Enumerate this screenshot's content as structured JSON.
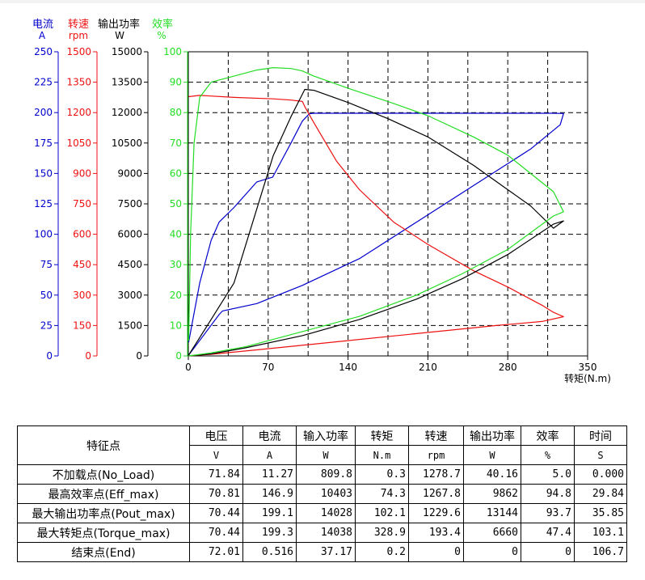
{
  "chart_data": {
    "type": "line",
    "xlabel": "转矩(N.m)",
    "x_ticks": [
      0,
      70,
      140,
      210,
      280,
      350
    ],
    "xlim": [
      0,
      350
    ],
    "grid": true,
    "axes": [
      {
        "name": "电流",
        "unit": "A",
        "color": "#0000cc",
        "ticks": [
          0,
          25,
          50,
          75,
          100,
          125,
          150,
          175,
          200,
          225,
          250
        ],
        "ylim": [
          0,
          250
        ]
      },
      {
        "name": "转速",
        "unit": "rpm",
        "color": "#ee1111",
        "ticks": [
          0,
          150,
          300,
          450,
          600,
          750,
          900,
          1050,
          1200,
          1350,
          1500
        ],
        "ylim": [
          0,
          1500
        ]
      },
      {
        "name": "输出功率",
        "unit": "W",
        "color": "#000000",
        "ticks": [
          0,
          1500,
          3000,
          4500,
          6000,
          7500,
          9000,
          10500,
          12000,
          13500,
          15000
        ],
        "ylim": [
          0,
          15000
        ]
      },
      {
        "name": "效率",
        "unit": "%",
        "color": "#22dd22",
        "ticks": [
          0,
          10,
          20,
          30,
          40,
          50,
          60,
          70,
          80,
          90,
          100
        ],
        "ylim": [
          0,
          100
        ]
      }
    ],
    "series": [
      {
        "axis": 0,
        "color": "#0000cc",
        "points": [
          [
            0.3,
            11.3
          ],
          [
            10,
            60
          ],
          [
            20,
            95
          ],
          [
            27,
            110
          ],
          [
            40,
            122
          ],
          [
            60,
            143
          ],
          [
            74,
            147
          ],
          [
            90,
            175
          ],
          [
            100,
            193
          ],
          [
            106,
            199
          ],
          [
            110,
            199.5
          ],
          [
            200,
            199.5
          ],
          [
            320,
            199.5
          ],
          [
            328.9,
            199.3
          ],
          [
            326,
            190
          ],
          [
            300,
            170
          ],
          [
            250,
            140
          ],
          [
            200,
            110
          ],
          [
            150,
            80
          ],
          [
            100,
            58
          ],
          [
            60,
            43
          ],
          [
            30,
            37
          ],
          [
            27,
            34
          ],
          [
            0.2,
            0.5
          ]
        ]
      },
      {
        "axis": 1,
        "color": "#ee1111",
        "points": [
          [
            0.3,
            1278.7
          ],
          [
            10,
            1285
          ],
          [
            40,
            1275
          ],
          [
            74.3,
            1267.8
          ],
          [
            90,
            1262
          ],
          [
            100,
            1255
          ],
          [
            102.1,
            1229.6
          ],
          [
            110,
            1150
          ],
          [
            130,
            960
          ],
          [
            150,
            820
          ],
          [
            180,
            660
          ],
          [
            210,
            550
          ],
          [
            250,
            420
          ],
          [
            280,
            340
          ],
          [
            310,
            250
          ],
          [
            320,
            215
          ],
          [
            328.9,
            193.4
          ],
          [
            310,
            170
          ],
          [
            270,
            150
          ],
          [
            200,
            110
          ],
          [
            130,
            70
          ],
          [
            60,
            30
          ],
          [
            20,
            8
          ],
          [
            0.2,
            0
          ]
        ]
      },
      {
        "axis": 2,
        "color": "#000000",
        "points": [
          [
            0.3,
            40
          ],
          [
            20,
            1800
          ],
          [
            40,
            3600
          ],
          [
            74.3,
            9862
          ],
          [
            90,
            11800
          ],
          [
            102.1,
            13144
          ],
          [
            110,
            13100
          ],
          [
            140,
            12500
          ],
          [
            175,
            11700
          ],
          [
            210,
            10800
          ],
          [
            250,
            9400
          ],
          [
            280,
            8200
          ],
          [
            300,
            7400
          ],
          [
            320,
            6300
          ],
          [
            328.9,
            6660
          ],
          [
            320,
            6500
          ],
          [
            280,
            5000
          ],
          [
            240,
            3800
          ],
          [
            200,
            2800
          ],
          [
            150,
            1800
          ],
          [
            100,
            1000
          ],
          [
            50,
            400
          ],
          [
            20,
            100
          ],
          [
            0.2,
            0
          ]
        ]
      },
      {
        "axis": 3,
        "color": "#22dd22",
        "points": [
          [
            0.3,
            5
          ],
          [
            2,
            40
          ],
          [
            5,
            70
          ],
          [
            10,
            85
          ],
          [
            20,
            90
          ],
          [
            30,
            91
          ],
          [
            40,
            92
          ],
          [
            60,
            94
          ],
          [
            74.3,
            94.8
          ],
          [
            90,
            94.5
          ],
          [
            100,
            93.7
          ],
          [
            110,
            92
          ],
          [
            140,
            88
          ],
          [
            180,
            83
          ],
          [
            210,
            79
          ],
          [
            250,
            72
          ],
          [
            280,
            66
          ],
          [
            300,
            60
          ],
          [
            320,
            54
          ],
          [
            328.9,
            47.4
          ],
          [
            320,
            46
          ],
          [
            280,
            35
          ],
          [
            240,
            27
          ],
          [
            200,
            20
          ],
          [
            150,
            13
          ],
          [
            100,
            8
          ],
          [
            50,
            3
          ],
          [
            20,
            1
          ],
          [
            0.2,
            0
          ]
        ]
      }
    ]
  },
  "table": {
    "header_top": [
      "特征点",
      "电压",
      "电流",
      "输入功率",
      "转矩",
      "转速",
      "输出功率",
      "效率",
      "时间"
    ],
    "header_units": [
      "V",
      "A",
      "W",
      "N.m",
      "rpm",
      "W",
      "%",
      "S"
    ],
    "rows": [
      {
        "name": "不加载点(No_Load)",
        "values": [
          "71.84",
          "11.27",
          "809.8",
          "0.3",
          "1278.7",
          "40.16",
          "5.0",
          "0.000"
        ]
      },
      {
        "name": "最高效率点(Eff_max)",
        "values": [
          "70.81",
          "146.9",
          "10403",
          "74.3",
          "1267.8",
          "9862",
          "94.8",
          "29.84"
        ]
      },
      {
        "name": "最大输出功率点(Pout_max)",
        "values": [
          "70.44",
          "199.1",
          "14028",
          "102.1",
          "1229.6",
          "13144",
          "93.7",
          "35.85"
        ]
      },
      {
        "name": "最大转矩点(Torque_max)",
        "values": [
          "70.44",
          "199.3",
          "14038",
          "328.9",
          "193.4",
          "6660",
          "47.4",
          "103.1"
        ]
      },
      {
        "name": "结束点(End)",
        "values": [
          "72.01",
          "0.516",
          "37.17",
          "0.2",
          "0",
          "0",
          "0",
          "106.7"
        ]
      }
    ]
  }
}
